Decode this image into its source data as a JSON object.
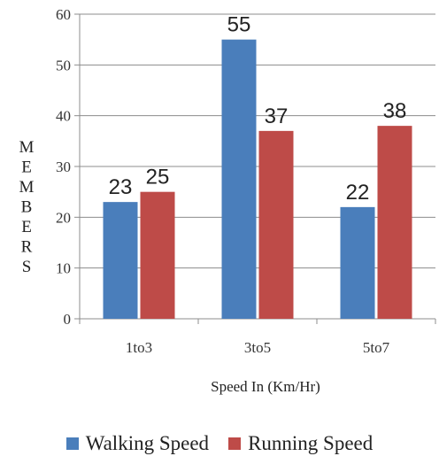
{
  "chart_data": {
    "type": "bar",
    "title": "",
    "ylabel": "MEMBERS",
    "xlabel": "Speed In (Km/Hr)",
    "categories": [
      "1to3",
      "3to5",
      "5to7"
    ],
    "series": [
      {
        "name": "Walking Speed",
        "values": [
          23,
          55,
          22
        ],
        "color": "#4a7ebb"
      },
      {
        "name": "Running Speed",
        "values": [
          25,
          37,
          38
        ],
        "color": "#be4b48"
      }
    ],
    "ylim": [
      0,
      60
    ],
    "yticks": [
      "0",
      "10",
      "20",
      "30",
      "40",
      "50",
      "60"
    ],
    "grid": true,
    "legend": "bottom"
  }
}
